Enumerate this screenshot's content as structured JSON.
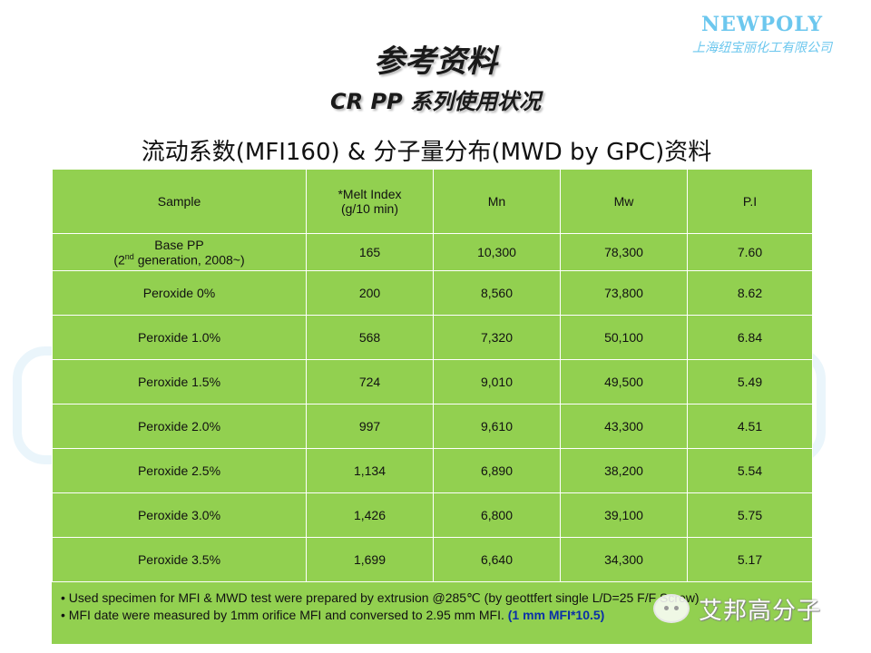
{
  "logo": {
    "brand": "NEWPOLY",
    "company_cn": "上海纽宝丽化工有限公司"
  },
  "title": "参考资料",
  "subtitle": "CR PP 系列使用状况",
  "heading": "流动系数(MFI160) & 分子量分布(MWD by GPC)资料",
  "table": {
    "headers": {
      "sample": "Sample",
      "melt_index_line1": "*Melt Index",
      "melt_index_line2": "(g/10 min)",
      "mn": "Mn",
      "mw": "Mw",
      "pi": "P.I"
    },
    "base_row": {
      "sample_line1": "Base PP",
      "sample_open": "(2",
      "sample_sup": "nd",
      "sample_close": " generation, 2008~)",
      "melt_index": "165",
      "mn": "10,300",
      "mw": "78,300",
      "pi": "7.60"
    },
    "rows": [
      {
        "sample": "Peroxide 0%",
        "melt_index": "200",
        "mn": "8,560",
        "mw": "73,800",
        "pi": "8.62"
      },
      {
        "sample": "Peroxide 1.0%",
        "melt_index": "568",
        "mn": "7,320",
        "mw": "50,100",
        "pi": "6.84"
      },
      {
        "sample": "Peroxide 1.5%",
        "melt_index": "724",
        "mn": "9,010",
        "mw": "49,500",
        "pi": "5.49"
      },
      {
        "sample": "Peroxide 2.0%",
        "melt_index": "997",
        "mn": "9,610",
        "mw": "43,300",
        "pi": "4.51"
      },
      {
        "sample": "Peroxide 2.5%",
        "melt_index": "1,134",
        "mn": "6,890",
        "mw": "38,200",
        "pi": "5.54"
      },
      {
        "sample": "Peroxide 3.0%",
        "melt_index": "1,426",
        "mn": "6,800",
        "mw": "39,100",
        "pi": "5.75"
      },
      {
        "sample": "Peroxide 3.5%",
        "melt_index": "1,699",
        "mn": "6,640",
        "mw": "34,300",
        "pi": "5.17"
      }
    ]
  },
  "notes": {
    "line1": "• Used specimen for MFI & MWD test were prepared by extrusion @285℃ (by geottfert single L/D=25 F/F Screw)",
    "line2_text": "• MFI date were measured by 1mm orifice MFI and conversed to 2.95 mm MFI.",
    "line2_highlight": "(1 mm MFI*10.5)"
  },
  "watermark": {
    "text": "艾邦高分子",
    "icon": "wechat-icon"
  }
}
